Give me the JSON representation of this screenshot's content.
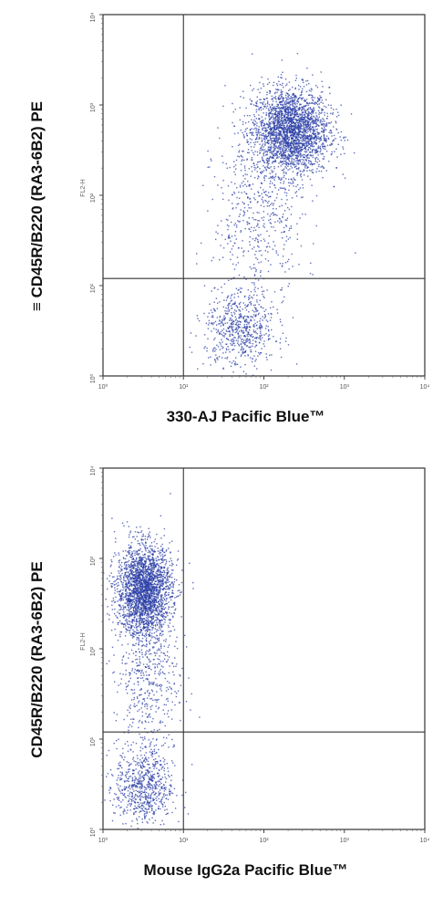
{
  "chart_data": [
    {
      "type": "scatter",
      "title": "",
      "xlabel": "330-AJ Pacific Blue™",
      "ylabel": "CD45R/B220 (RA3-6B2) PE",
      "ylabel_prefix": "≡",
      "xscale": "log",
      "yscale": "log",
      "xlim": [
        1,
        10000
      ],
      "ylim": [
        1,
        10000
      ],
      "xticks": [
        "10⁰",
        "10¹",
        "10²",
        "10³",
        "10⁴"
      ],
      "yticks": [
        "10⁰",
        "10¹",
        "10²",
        "10³",
        "10⁴"
      ],
      "channel_label": "FL2-H",
      "quadrant_gate": {
        "x": 10,
        "y": 12
      },
      "grid": false,
      "color": "#2b3fa6",
      "populations": [
        {
          "x": 210,
          "y": 520,
          "sx": 0.24,
          "sy": 0.24,
          "n": 2600
        },
        {
          "x": 50,
          "y": 3.3,
          "sx": 0.22,
          "sy": 0.22,
          "n": 650
        },
        {
          "x": 85,
          "y": 60,
          "sx": 0.28,
          "sy": 0.45,
          "n": 500
        }
      ]
    },
    {
      "type": "scatter",
      "title": "",
      "xlabel": "Mouse IgG2a Pacific Blue™",
      "ylabel": "CD45R/B220 (RA3-6B2) PE",
      "xscale": "log",
      "yscale": "log",
      "xlim": [
        1,
        10000
      ],
      "ylim": [
        1,
        10000
      ],
      "xticks": [
        "10⁰",
        "10¹",
        "10²",
        "10³",
        "10⁴"
      ],
      "yticks": [
        "10⁰",
        "10¹",
        "10²",
        "10³",
        "10⁴"
      ],
      "channel_label": "FL2-H",
      "quadrant_gate": {
        "x": 10,
        "y": 12
      },
      "grid": false,
      "color": "#2b3fa6",
      "populations": [
        {
          "x": 3.2,
          "y": 450,
          "sx": 0.17,
          "sy": 0.25,
          "n": 2500
        },
        {
          "x": 3.2,
          "y": 3.0,
          "sx": 0.18,
          "sy": 0.22,
          "n": 700
        },
        {
          "x": 3.4,
          "y": 50,
          "sx": 0.2,
          "sy": 0.45,
          "n": 500
        }
      ]
    }
  ]
}
